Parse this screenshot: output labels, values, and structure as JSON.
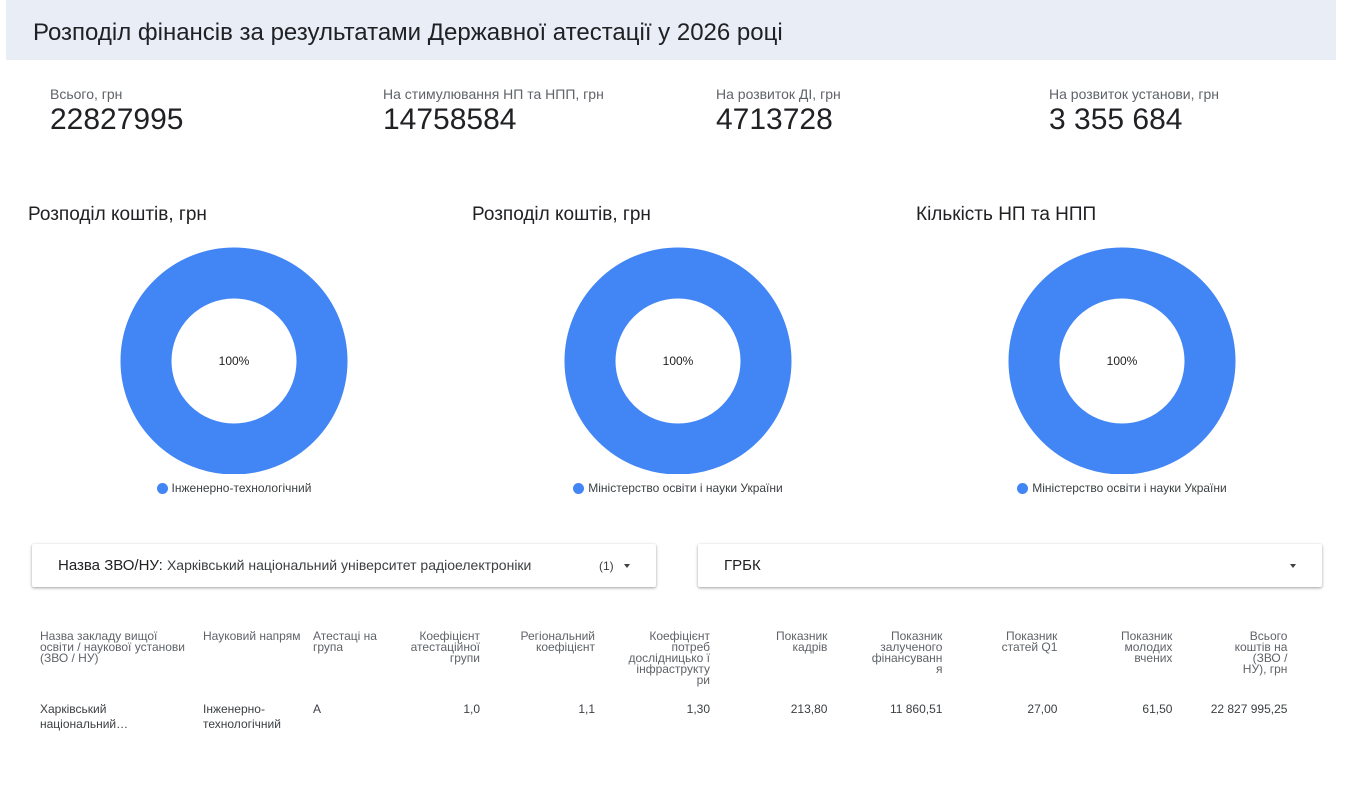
{
  "header": {
    "title": "Розподіл фінансів за результатами Державної атестації у 2026 році"
  },
  "kpis": [
    {
      "label": "Всього, грн",
      "value": "22827995"
    },
    {
      "label": "На стимулювання НП та НПП, грн",
      "value": "14758584"
    },
    {
      "label": "На розвиток ДІ, грн",
      "value": "4713728"
    },
    {
      "label": "На розвиток установи, грн",
      "value": "3 355 684"
    }
  ],
  "charts": [
    {
      "title": "Розподіл коштів, грн",
      "center_label": "100%",
      "legend": "Інженерно-технологічний",
      "share": 1.0,
      "color": "#4285f4"
    },
    {
      "title": "Розподіл коштів, грн",
      "center_label": "100%",
      "legend": "Міністерство освіти і науки України",
      "share": 1.0,
      "color": "#4285f4"
    },
    {
      "title": "Кількість НП та НПП",
      "center_label": "100%",
      "legend": "Міністерство освіти і науки України",
      "share": 1.0,
      "color": "#4285f4"
    }
  ],
  "filters": {
    "institution": {
      "label": "Назва ЗВО/НУ:",
      "value": "Харківський національний університет радіоелектроніки",
      "count": "(1)"
    },
    "grbk": {
      "label": "ГРБК"
    }
  },
  "table": {
    "headers": [
      "Назва закладу вищої освіти / наукової установи (ЗВО / НУ)",
      "Науковий напрям",
      "Атестаці на група",
      "Коефіцієнт атестаційної групи",
      "Регіональний коефіцієнт",
      "Коефіцієнт потреб дослідницько ї інфраструкту ри",
      "Показник кадрів",
      "Показник залученого фінансуванн я",
      "Показник статей Q1",
      "Показник молодих вчених",
      "Всього коштів на (ЗВО / НУ), грн"
    ],
    "rows": [
      [
        "Харківський національний…",
        "Інженерно-технологічний",
        "А",
        "1,0",
        "1,1",
        "1,30",
        "213,80",
        "11 860,51",
        "27,00",
        "61,50",
        "22 827 995,25"
      ]
    ]
  }
}
